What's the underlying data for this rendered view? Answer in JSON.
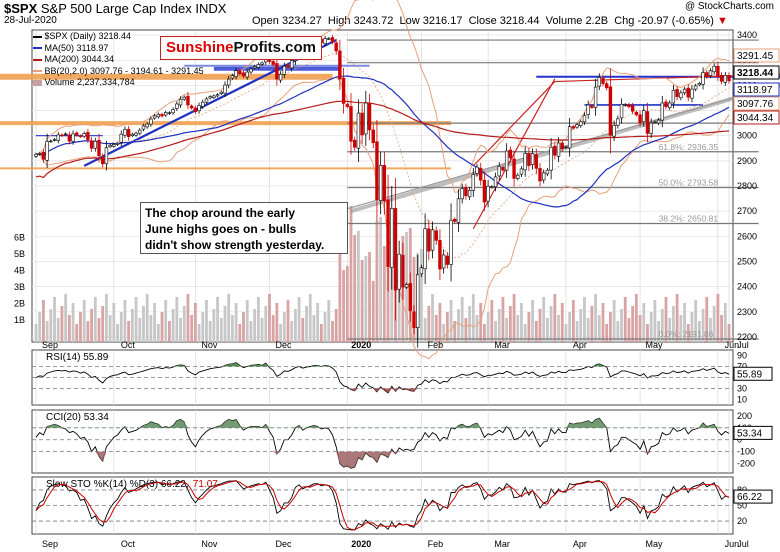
{
  "header": {
    "symbol": "$SPX",
    "name": "S&P 500 Large Cap Index",
    "exchange": "INDX",
    "date": "28-Jul-2020",
    "open_label": "Open",
    "open": "3234.27",
    "high_label": "High",
    "high": "3243.72",
    "low_label": "Low",
    "low": "3216.17",
    "close_label": "Close",
    "close": "3218.44",
    "volume_label": "Volume",
    "volume": "2.2B",
    "chg_label": "Chg",
    "chg": "-20.97 (-0.65%)",
    "credit": "@ StockCharts.com"
  },
  "logo": {
    "part1": "Sunshine",
    "part2": "Profits.com"
  },
  "legend": {
    "main": "$SPX (Daily) 3218.44",
    "ma50": "MA(50) 3118.97",
    "ma200": "MA(200) 3044.34",
    "bb": "BB(20,2.0) 3097.76 - 3194.61 - 3291.45",
    "volume": "Volume 2,237,334,784"
  },
  "callout": {
    "line1": "The chop around the early",
    "line2": "June highs goes on - bulls",
    "line3": "didn't show strength yesterday."
  },
  "colors": {
    "up": "#000000",
    "down": "#cc0000",
    "ma50": "#1f2fbf",
    "ma200": "#b51a1a",
    "bb": "#e8a07a",
    "fib_blue": "#2233cc",
    "orange": "#f0a050",
    "accent_red": "#d00000"
  },
  "chart_data": [
    {
      "type": "candlestick",
      "title": "$SPX S&P 500 Large Cap Index",
      "x_labels": [
        "Sep",
        "Oct",
        "Nov",
        "Dec",
        "2020",
        "Feb",
        "Mar",
        "Apr",
        "May",
        "Jun",
        "Jul"
      ],
      "y_ticks": [
        2200,
        2300,
        2400,
        2500,
        2600,
        2700,
        2800,
        2900,
        3000,
        3100,
        3200,
        3300,
        3400
      ],
      "ylim": [
        2180,
        3420
      ],
      "price_labels": [
        "3291.45",
        "3218.44",
        "3118.97",
        "3097.76",
        "3044.34"
      ],
      "fib_labels": [
        "38.2%: 2650.81",
        "50.0%: 2793.58",
        "61.8%: 2936.35",
        "0.0%: 2191.86"
      ],
      "closes": [
        2926,
        2930,
        2906,
        2977,
        2979,
        2985,
        3003,
        3000,
        3007,
        2978,
        3007,
        3003,
        2998,
        3009,
        2984,
        2950,
        2978,
        2920,
        2888,
        2952,
        2962,
        2965,
        2970,
        3006,
        3025,
        2996,
        3006,
        3010,
        3022,
        3039,
        3046,
        3066,
        3079,
        3085,
        3078,
        3092,
        3091,
        3104,
        3126,
        3145,
        3153,
        3122,
        3110,
        3095,
        3120,
        3133,
        3146,
        3155,
        3158,
        3163,
        3173,
        3201,
        3225,
        3239,
        3258,
        3246,
        3237,
        3253,
        3265,
        3275,
        3283,
        3289,
        3316,
        3295,
        3283,
        3225,
        3244,
        3276,
        3273,
        3298,
        3335,
        3346,
        3327,
        3352,
        3358,
        3373,
        3380,
        3370,
        3386,
        3386,
        3373,
        3337,
        3225,
        3128,
        3116,
        2978,
        2954,
        3090,
        3003,
        3130,
        3023,
        2972,
        2746,
        2882,
        2741,
        2480,
        2711,
        2386,
        2529,
        2398,
        2409,
        2304,
        2237,
        2447,
        2475,
        2630,
        2541,
        2626,
        2584,
        2470,
        2526,
        2488,
        2664,
        2659,
        2749,
        2790,
        2761,
        2783,
        2846,
        2875,
        2823,
        2736,
        2799,
        2797,
        2836,
        2878,
        2863,
        2939,
        2912,
        2830,
        2843,
        2868,
        2930,
        2881,
        2929,
        2870,
        2820,
        2852,
        2863,
        2954,
        2922,
        2971,
        2948,
        2955,
        3036,
        3030,
        3044,
        3055,
        3080,
        3122,
        3112,
        3193,
        3232,
        3207,
        3190,
        3002,
        3041,
        3067,
        3125,
        3124,
        3115,
        3097,
        3083,
        3051,
        3100,
        3009,
        3050,
        3054,
        3062,
        3130,
        3115,
        3130,
        3180,
        3155,
        3170,
        3185,
        3153,
        3185,
        3198,
        3208,
        3251,
        3235,
        3258,
        3276,
        3236,
        3216,
        3240,
        3218
      ],
      "rsi_label": "RSI(14) 55.89",
      "rsi_value": 55.89,
      "rsi_ticks": [
        90,
        70,
        50,
        30,
        10
      ],
      "rsi": [
        50,
        53,
        52,
        58,
        60,
        62,
        63,
        62,
        63,
        60,
        62,
        61,
        58,
        60,
        56,
        50,
        52,
        45,
        40,
        48,
        52,
        54,
        55,
        58,
        60,
        55,
        56,
        58,
        60,
        62,
        64,
        66,
        67,
        68,
        66,
        68,
        67,
        69,
        72,
        73,
        72,
        62,
        58,
        55,
        60,
        62,
        64,
        66,
        67,
        68,
        69,
        72,
        74,
        75,
        77,
        72,
        68,
        70,
        72,
        73,
        74,
        72,
        76,
        68,
        63,
        52,
        56,
        62,
        61,
        64,
        68,
        70,
        67,
        69,
        70,
        72,
        72,
        70,
        72,
        71,
        67,
        60,
        42,
        35,
        33,
        28,
        26,
        38,
        32,
        40,
        34,
        31,
        24,
        33,
        27,
        22,
        34,
        25,
        33,
        28,
        29,
        26,
        25,
        36,
        38,
        46,
        41,
        46,
        44,
        39,
        43,
        42,
        50,
        50,
        53,
        56,
        54,
        55,
        58,
        59,
        55,
        51,
        54,
        54,
        56,
        58,
        57,
        61,
        59,
        54,
        55,
        56,
        60,
        57,
        60,
        55,
        52,
        54,
        55,
        60,
        58,
        61,
        59,
        59,
        64,
        63,
        64,
        65,
        67,
        70,
        68,
        73,
        75,
        72,
        69,
        51,
        55,
        57,
        62,
        62,
        60,
        58,
        56,
        53,
        57,
        49,
        53,
        53,
        54,
        59,
        57,
        58,
        62,
        59,
        60,
        62,
        58,
        61,
        62,
        63,
        66,
        63,
        65,
        67,
        60,
        57,
        59,
        56
      ],
      "cci_label": "CCI(20) 53.34",
      "cci_value": 53.34,
      "cci_ticks": [
        200,
        100,
        0,
        -100,
        -200
      ],
      "cci": [
        20,
        60,
        40,
        110,
        120,
        130,
        120,
        100,
        90,
        60,
        70,
        50,
        10,
        20,
        -20,
        -100,
        -60,
        -140,
        -180,
        -60,
        -20,
        20,
        40,
        80,
        110,
        60,
        70,
        80,
        100,
        120,
        130,
        150,
        140,
        130,
        100,
        110,
        100,
        120,
        160,
        170,
        150,
        40,
        -20,
        -60,
        0,
        40,
        70,
        90,
        100,
        110,
        120,
        150,
        170,
        160,
        170,
        120,
        80,
        100,
        110,
        110,
        110,
        100,
        130,
        70,
        20,
        -120,
        -80,
        0,
        0,
        40,
        100,
        120,
        80,
        100,
        110,
        120,
        110,
        90,
        100,
        90,
        40,
        -60,
        -200,
        -230,
        -220,
        -240,
        -230,
        -150,
        -170,
        -110,
        -140,
        -150,
        -190,
        -120,
        -130,
        -150,
        -80,
        -120,
        -70,
        -90,
        -80,
        -90,
        -80,
        -20,
        0,
        60,
        20,
        60,
        40,
        -10,
        20,
        10,
        100,
        90,
        120,
        130,
        110,
        110,
        130,
        140,
        90,
        20,
        50,
        40,
        60,
        80,
        60,
        110,
        80,
        0,
        10,
        30,
        80,
        30,
        70,
        0,
        -60,
        -20,
        -10,
        90,
        50,
        90,
        60,
        60,
        140,
        130,
        140,
        140,
        150,
        160,
        140,
        170,
        180,
        140,
        100,
        -100,
        -60,
        -40,
        20,
        20,
        0,
        -20,
        -40,
        -80,
        -10,
        -120,
        -60,
        -50,
        -30,
        60,
        40,
        50,
        100,
        70,
        80,
        100,
        50,
        80,
        90,
        100,
        140,
        110,
        120,
        130,
        70,
        40,
        70,
        53
      ],
      "sto_label": "Slow STO %K(14) %D(3) 66.22,",
      "sto_d_text": "71.07",
      "sto_k_value": 66.22,
      "sto_d_value": 71.07,
      "sto_ticks": [
        80,
        50,
        20
      ],
      "sto_k": [
        40,
        55,
        60,
        80,
        88,
        90,
        92,
        90,
        88,
        78,
        80,
        75,
        60,
        62,
        45,
        25,
        30,
        15,
        10,
        30,
        45,
        55,
        62,
        75,
        85,
        75,
        78,
        82,
        86,
        90,
        92,
        94,
        95,
        95,
        90,
        92,
        90,
        92,
        95,
        96,
        95,
        80,
        65,
        55,
        65,
        72,
        80,
        86,
        88,
        90,
        92,
        95,
        97,
        97,
        98,
        90,
        82,
        85,
        88,
        90,
        92,
        90,
        95,
        80,
        65,
        35,
        40,
        55,
        55,
        65,
        85,
        90,
        82,
        86,
        88,
        92,
        92,
        88,
        90,
        88,
        78,
        55,
        15,
        5,
        4,
        3,
        3,
        15,
        12,
        22,
        15,
        12,
        5,
        15,
        10,
        4,
        18,
        8,
        16,
        12,
        14,
        10,
        8,
        30,
        40,
        62,
        50,
        60,
        55,
        40,
        48,
        45,
        75,
        75,
        85,
        90,
        85,
        86,
        92,
        94,
        82,
        62,
        70,
        70,
        76,
        85,
        80,
        92,
        86,
        65,
        66,
        70,
        85,
        70,
        80,
        62,
        45,
        55,
        58,
        82,
        72,
        82,
        76,
        76,
        92,
        90,
        92,
        93,
        95,
        97,
        94,
        97,
        98,
        92,
        82,
        40,
        45,
        52,
        65,
        65,
        60,
        55,
        48,
        35,
        50,
        25,
        40,
        42,
        48,
        72,
        66,
        70,
        86,
        76,
        82,
        88,
        75,
        85,
        88,
        90,
        95,
        86,
        90,
        94,
        78,
        62,
        68,
        66
      ]
    }
  ]
}
